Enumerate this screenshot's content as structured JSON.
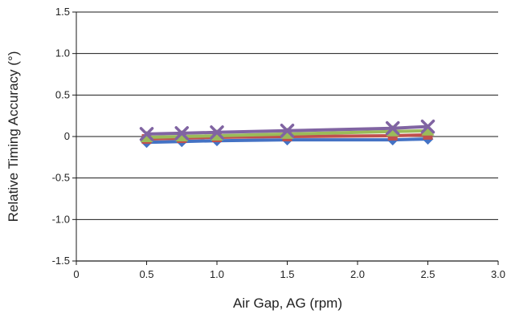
{
  "chart_data": {
    "type": "line",
    "title": "",
    "xlabel": "Air Gap, AG (rpm)",
    "ylabel": "Relative Timing Accuracy (°)",
    "xlim": [
      0,
      3.0
    ],
    "ylim": [
      -1.5,
      1.5
    ],
    "x_ticks": [
      "0",
      "0.5",
      "1.0",
      "1.5",
      "2.0",
      "2.5",
      "3.0"
    ],
    "x_tick_values": [
      0,
      0.5,
      1.0,
      1.5,
      2.0,
      2.5,
      3.0
    ],
    "y_ticks": [
      "1.5",
      "1.0",
      "0.5",
      "0",
      "-0.5",
      "-1.0",
      "-1.5"
    ],
    "y_tick_values": [
      1.5,
      1.0,
      0.5,
      0,
      -0.5,
      -1.0,
      -1.5
    ],
    "grid": "horizontal",
    "legend": "none",
    "series": [
      {
        "color": "#4472C4",
        "marker": "diamond",
        "x": [
          0.5,
          0.75,
          1.0,
          1.5,
          2.25,
          2.5
        ],
        "y": [
          -0.07,
          -0.06,
          -0.05,
          -0.04,
          -0.04,
          -0.03
        ]
      },
      {
        "color": "#C0504D",
        "marker": "square",
        "x": [
          0.5,
          0.75,
          1.0,
          1.5,
          2.25,
          2.5
        ],
        "y": [
          -0.03,
          -0.02,
          -0.01,
          0.0,
          0.01,
          0.02
        ]
      },
      {
        "color": "#9BBB59",
        "marker": "triangle",
        "x": [
          0.5,
          0.75,
          1.0,
          1.5,
          2.25,
          2.5
        ],
        "y": [
          -0.01,
          0.0,
          0.01,
          0.03,
          0.06,
          0.07
        ]
      },
      {
        "color": "#8064A2",
        "marker": "x",
        "x": [
          0.5,
          0.75,
          1.0,
          1.5,
          2.25,
          2.5
        ],
        "y": [
          0.03,
          0.04,
          0.05,
          0.07,
          0.1,
          0.12
        ]
      }
    ]
  }
}
